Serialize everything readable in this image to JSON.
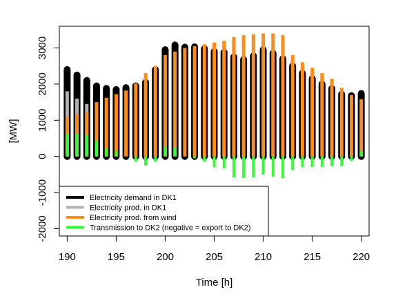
{
  "chart_data": {
    "type": "bar",
    "xlabel": "Time [h]",
    "ylabel": "[MW]",
    "xlim": [
      189.2,
      220.8
    ],
    "ylim": [
      -2200,
      3600
    ],
    "xticks": [
      190,
      195,
      200,
      205,
      210,
      215,
      220
    ],
    "yticks": [
      -2000,
      -1000,
      0,
      1000,
      2000,
      3000
    ],
    "x": [
      190,
      191,
      192,
      193,
      194,
      195,
      196,
      197,
      198,
      199,
      200,
      201,
      202,
      203,
      204,
      205,
      206,
      207,
      208,
      209,
      210,
      211,
      212,
      213,
      214,
      215,
      216,
      217,
      218,
      219,
      220
    ],
    "legend": {
      "position": "bottom-left",
      "entries": [
        "Electricity demand in DK1",
        "Electricity prod. in DK1",
        "Electricity prod. from wind",
        "Transmission to DK2 (negative = export to DK2)"
      ]
    },
    "series": [
      {
        "name": "Electricity demand in DK1",
        "color": "#000000",
        "values": [
          2400,
          2250,
          2100,
          1950,
          1880,
          1850,
          1900,
          1950,
          2050,
          2400,
          2950,
          3080,
          3020,
          3030,
          2980,
          2900,
          2880,
          2750,
          2680,
          2780,
          2950,
          2850,
          2700,
          2500,
          2300,
          2150,
          2000,
          1880,
          1720,
          1680,
          1740
        ]
      },
      {
        "name": "Electricity prod. in DK1",
        "color": "#b3b3b3",
        "values": [
          1800,
          1600,
          1450,
          0,
          0,
          0,
          0,
          0,
          0,
          0,
          0,
          0,
          0,
          0,
          0,
          0,
          0,
          0,
          0,
          0,
          0,
          0,
          0,
          0,
          0,
          0,
          0,
          0,
          0,
          0,
          0
        ]
      },
      {
        "name": "Electricity prod. from wind",
        "color": "#ff8c1a",
        "values": [
          1100,
          1180,
          1220,
          1500,
          1620,
          1720,
          1820,
          2020,
          2300,
          2500,
          2800,
          2900,
          3000,
          3050,
          3100,
          3150,
          3200,
          3300,
          3350,
          3380,
          3400,
          3400,
          3350,
          2800,
          2600,
          2450,
          2300,
          2150,
          1900,
          1700,
          1580
        ]
      },
      {
        "name": "Transmission to DK2 (negative = export to DK2)",
        "color": "#33ff33",
        "values": [
          620,
          620,
          600,
          440,
          230,
          160,
          0,
          -150,
          -250,
          -150,
          270,
          260,
          0,
          -50,
          -150,
          -300,
          -330,
          -580,
          -600,
          -580,
          -500,
          -560,
          -600,
          -380,
          -300,
          -290,
          -290,
          -270,
          -270,
          -120,
          150
        ]
      }
    ],
    "grid": false
  }
}
